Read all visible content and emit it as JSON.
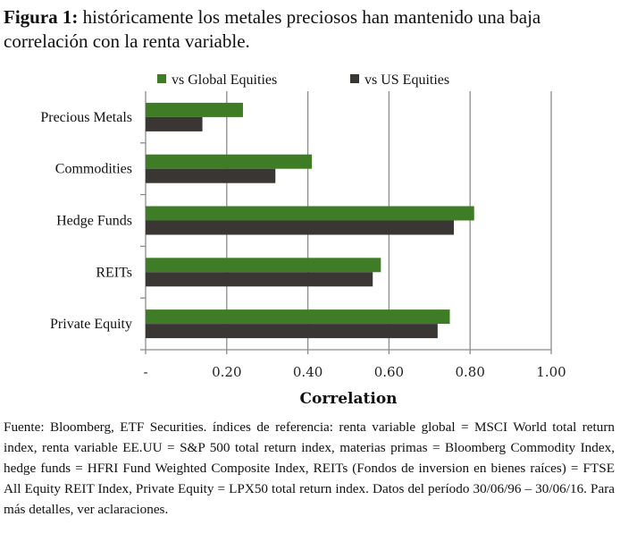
{
  "title_bold": "Figura 1:",
  "title_rest": " históricamente los metales preciosos han mantenido una baja correlación con la renta variable.",
  "footnote": "Fuente: Bloomberg, ETF Securities. índices de referencia: renta variable global = MSCI World total return index, renta variable EE.UU = S&P 500 total return index, materias primas = Bloomberg Commodity Index, hedge funds = HFRI Fund Weighted Composite Index, REITs (Fondos de inversion en bienes raíces) = FTSE All Equity REIT Index, Private Equity = LPX50 total return index. Datos del período 30/06/96 – 30/06/16. Para más detalles, ver aclaraciones.",
  "chart_data": {
    "type": "bar",
    "orientation": "horizontal",
    "categories": [
      "Precious Metals",
      "Commodities",
      "Hedge Funds",
      "REITs",
      "Private Equity"
    ],
    "series": [
      {
        "name": "vs Global Equities",
        "color": "#3f7c26",
        "values": [
          0.24,
          0.41,
          0.81,
          0.58,
          0.75
        ]
      },
      {
        "name": "vs US Equities",
        "color": "#3a3634",
        "values": [
          0.14,
          0.32,
          0.76,
          0.56,
          0.72
        ]
      }
    ],
    "xlabel": "Correlation",
    "xlim": [
      0,
      1
    ],
    "xticks": [
      "-",
      "0.20",
      "0.40",
      "0.60",
      "0.80",
      "1.00"
    ],
    "grid": true,
    "legend": "top"
  }
}
